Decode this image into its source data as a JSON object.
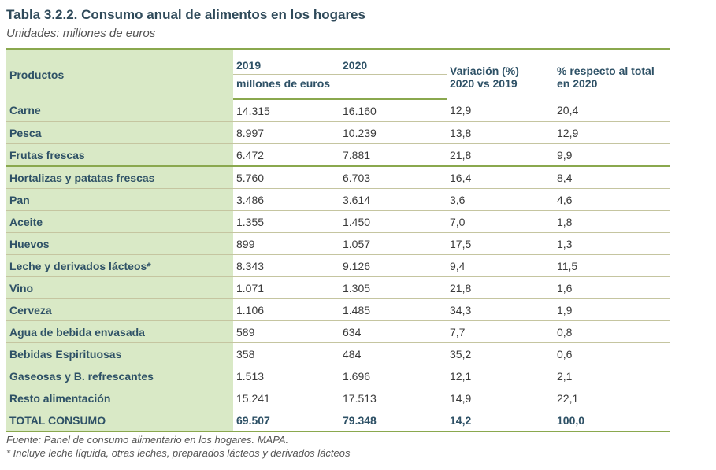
{
  "title": "Tabla 3.2.2. Consumo anual de alimentos en los hogares",
  "subtitle": "Unidades: millones de euros",
  "headers": {
    "productos": "Productos",
    "y2019": "2019",
    "y2020": "2020",
    "unit": "millones de euros",
    "variacion_l1": "Variación (%)",
    "variacion_l2": "2020 vs 2019",
    "pct_l1": "% respecto al total",
    "pct_l2": "en 2020"
  },
  "rows": [
    {
      "name": "Carne",
      "v2019": "14.315",
      "v2020": "16.160",
      "var": "12,9",
      "pct": "20,4"
    },
    {
      "name": "Pesca",
      "v2019": "8.997",
      "v2020": "10.239",
      "var": "13,8",
      "pct": "12,9"
    },
    {
      "name": "Frutas frescas",
      "v2019": "6.472",
      "v2020": "7.881",
      "var": "21,8",
      "pct": "9,9"
    },
    {
      "name": "Hortalizas y patatas frescas",
      "v2019": "5.760",
      "v2020": "6.703",
      "var": "16,4",
      "pct": "8,4"
    },
    {
      "name": "Pan",
      "v2019": "3.486",
      "v2020": "3.614",
      "var": "3,6",
      "pct": "4,6"
    },
    {
      "name": "Aceite",
      "v2019": "1.355",
      "v2020": "1.450",
      "var": "7,0",
      "pct": "1,8"
    },
    {
      "name": "Huevos",
      "v2019": "899",
      "v2020": "1.057",
      "var": "17,5",
      "pct": "1,3"
    },
    {
      "name": "Leche y derivados lácteos*",
      "v2019": "8.343",
      "v2020": "9.126",
      "var": "9,4",
      "pct": "11,5"
    },
    {
      "name": "Vino",
      "v2019": "1.071",
      "v2020": "1.305",
      "var": "21,8",
      "pct": "1,6"
    },
    {
      "name": "Cerveza",
      "v2019": "1.106",
      "v2020": "1.485",
      "var": "34,3",
      "pct": "1,9"
    },
    {
      "name": "Agua de bebida envasada",
      "v2019": "589",
      "v2020": "634",
      "var": "7,7",
      "pct": "0,8"
    },
    {
      "name": "Bebidas Espirituosas",
      "v2019": "358",
      "v2020": "484",
      "var": "35,2",
      "pct": "0,6"
    },
    {
      "name": "Gaseosas y B. refrescantes",
      "v2019": "1.513",
      "v2020": "1.696",
      "var": "12,1",
      "pct": "2,1"
    },
    {
      "name": "Resto alimentación",
      "v2019": "15.241",
      "v2020": "17.513",
      "var": "14,9",
      "pct": "22,1"
    }
  ],
  "total": {
    "name": "TOTAL CONSUMO",
    "v2019": "69.507",
    "v2020": "79.348",
    "var": "14,2",
    "pct": "100,0"
  },
  "notes": {
    "fuente": "Fuente: Panel de consumo alimentario en los hogares. MAPA.",
    "footnote": "* Incluye leche líquida, otras leches, preparados lácteos y derivados lácteos"
  },
  "colors": {
    "header_fill": "#d9e9c6",
    "rule": "#8aa84e",
    "text": "#2e5166"
  }
}
